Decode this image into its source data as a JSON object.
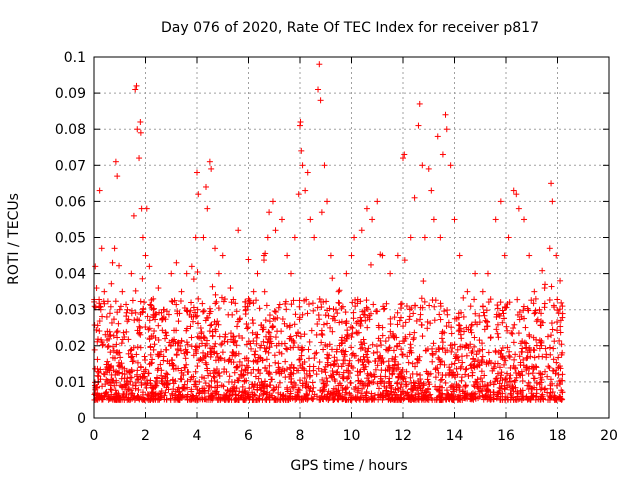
{
  "chart_data": {
    "type": "scatter",
    "title": "Day 076 of 2020, Rate Of TEC Index for receiver p817",
    "xlabel": "GPS time / hours",
    "ylabel": "ROTI / TECUs",
    "xlim": [
      0,
      20
    ],
    "ylim": [
      0,
      0.1
    ],
    "xticks": [
      "0",
      "2",
      "4",
      "6",
      "8",
      "10",
      "12",
      "14",
      "16",
      "18",
      "20"
    ],
    "yticks": [
      "0",
      "0.01",
      "0.02",
      "0.03",
      "0.04",
      "0.05",
      "0.06",
      "0.07",
      "0.08",
      "0.09",
      "0.1"
    ],
    "grid": true,
    "marker": "+",
    "color": "#ff0000",
    "data_x_range": [
      0,
      18.2
    ],
    "series": [
      {
        "name": "ROTI",
        "points": [
          [
            0.05,
            0.042
          ],
          [
            0.1,
            0.036
          ],
          [
            0.22,
            0.063
          ],
          [
            0.3,
            0.047
          ],
          [
            0.4,
            0.035
          ],
          [
            0.5,
            0.028
          ],
          [
            0.62,
            0.029
          ],
          [
            0.72,
            0.043
          ],
          [
            0.8,
            0.047
          ],
          [
            0.85,
            0.071
          ],
          [
            0.9,
            0.067
          ],
          [
            1.0,
            0.03
          ],
          [
            1.1,
            0.035
          ],
          [
            1.3,
            0.03
          ],
          [
            1.45,
            0.04
          ],
          [
            1.55,
            0.056
          ],
          [
            1.6,
            0.091
          ],
          [
            1.65,
            0.092
          ],
          [
            1.68,
            0.08
          ],
          [
            1.75,
            0.072
          ],
          [
            1.8,
            0.082
          ],
          [
            1.82,
            0.079
          ],
          [
            1.85,
            0.058
          ],
          [
            1.9,
            0.05
          ],
          [
            2.0,
            0.045
          ],
          [
            2.05,
            0.058
          ],
          [
            2.15,
            0.042
          ],
          [
            2.3,
            0.033
          ],
          [
            2.5,
            0.036
          ],
          [
            2.7,
            0.03
          ],
          [
            3.0,
            0.04
          ],
          [
            3.2,
            0.043
          ],
          [
            3.4,
            0.035
          ],
          [
            3.6,
            0.04
          ],
          [
            3.8,
            0.042
          ],
          [
            3.95,
            0.05
          ],
          [
            4.0,
            0.068
          ],
          [
            4.05,
            0.062
          ],
          [
            4.25,
            0.05
          ],
          [
            4.35,
            0.064
          ],
          [
            4.4,
            0.058
          ],
          [
            4.5,
            0.071
          ],
          [
            4.55,
            0.069
          ],
          [
            4.7,
            0.047
          ],
          [
            4.85,
            0.04
          ],
          [
            5.0,
            0.045
          ],
          [
            5.3,
            0.036
          ],
          [
            5.6,
            0.052
          ],
          [
            5.9,
            0.03
          ],
          [
            6.0,
            0.033
          ],
          [
            6.2,
            0.035
          ],
          [
            6.35,
            0.04
          ],
          [
            6.6,
            0.045
          ],
          [
            6.75,
            0.05
          ],
          [
            6.8,
            0.057
          ],
          [
            6.95,
            0.06
          ],
          [
            7.05,
            0.052
          ],
          [
            7.3,
            0.055
          ],
          [
            7.5,
            0.045
          ],
          [
            7.65,
            0.04
          ],
          [
            7.8,
            0.05
          ],
          [
            7.95,
            0.062
          ],
          [
            8.0,
            0.081
          ],
          [
            8.02,
            0.082
          ],
          [
            8.05,
            0.074
          ],
          [
            8.1,
            0.07
          ],
          [
            8.2,
            0.063
          ],
          [
            8.3,
            0.068
          ],
          [
            8.4,
            0.055
          ],
          [
            8.55,
            0.05
          ],
          [
            8.7,
            0.091
          ],
          [
            8.75,
            0.098
          ],
          [
            8.8,
            0.088
          ],
          [
            8.85,
            0.057
          ],
          [
            8.95,
            0.07
          ],
          [
            9.05,
            0.06
          ],
          [
            9.2,
            0.045
          ],
          [
            9.5,
            0.035
          ],
          [
            9.8,
            0.04
          ],
          [
            10.0,
            0.045
          ],
          [
            10.1,
            0.05
          ],
          [
            10.4,
            0.052
          ],
          [
            10.6,
            0.058
          ],
          [
            10.8,
            0.055
          ],
          [
            11.0,
            0.06
          ],
          [
            11.2,
            0.045
          ],
          [
            11.5,
            0.04
          ],
          [
            11.8,
            0.045
          ],
          [
            12.0,
            0.072
          ],
          [
            12.05,
            0.073
          ],
          [
            12.3,
            0.05
          ],
          [
            12.45,
            0.061
          ],
          [
            12.6,
            0.081
          ],
          [
            12.65,
            0.087
          ],
          [
            12.75,
            0.07
          ],
          [
            12.85,
            0.05
          ],
          [
            13.0,
            0.069
          ],
          [
            13.1,
            0.063
          ],
          [
            13.2,
            0.055
          ],
          [
            13.35,
            0.078
          ],
          [
            13.45,
            0.05
          ],
          [
            13.55,
            0.073
          ],
          [
            13.65,
            0.084
          ],
          [
            13.7,
            0.08
          ],
          [
            13.85,
            0.07
          ],
          [
            14.0,
            0.055
          ],
          [
            14.2,
            0.045
          ],
          [
            14.5,
            0.035
          ],
          [
            14.8,
            0.04
          ],
          [
            15.1,
            0.035
          ],
          [
            15.3,
            0.04
          ],
          [
            15.6,
            0.055
          ],
          [
            15.8,
            0.06
          ],
          [
            15.95,
            0.045
          ],
          [
            16.1,
            0.05
          ],
          [
            16.3,
            0.063
          ],
          [
            16.4,
            0.062
          ],
          [
            16.5,
            0.058
          ],
          [
            16.7,
            0.055
          ],
          [
            16.9,
            0.045
          ],
          [
            17.1,
            0.035
          ],
          [
            17.3,
            0.03
          ],
          [
            17.5,
            0.036
          ],
          [
            17.7,
            0.047
          ],
          [
            17.75,
            0.065
          ],
          [
            17.8,
            0.06
          ],
          [
            17.95,
            0.045
          ],
          [
            18.1,
            0.038
          ]
        ]
      }
    ]
  }
}
